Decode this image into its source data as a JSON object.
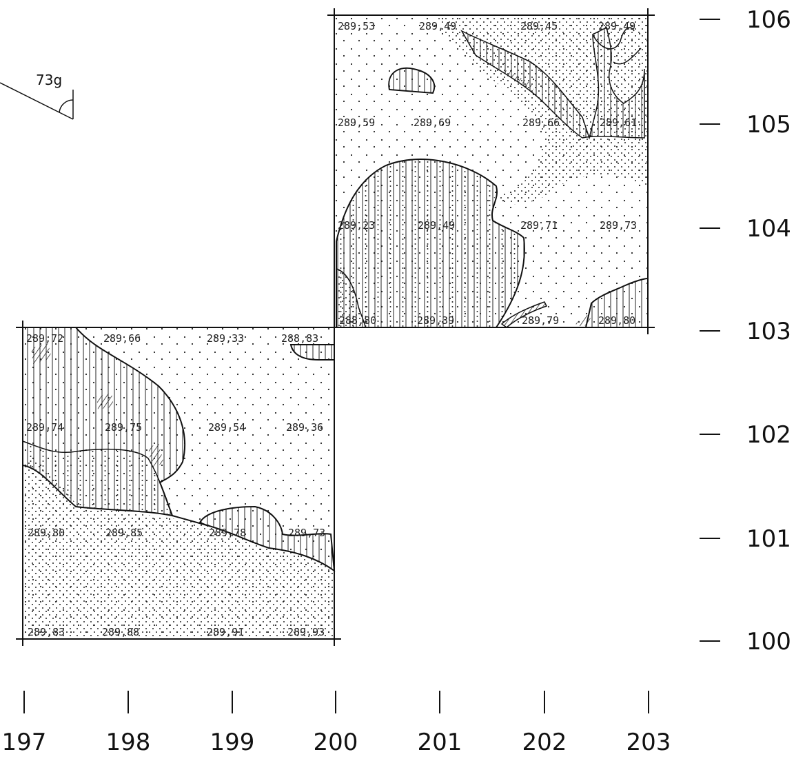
{
  "bearing": {
    "label": "73g"
  },
  "axes": {
    "x_labels": [
      "197",
      "198",
      "199",
      "200",
      "201",
      "202",
      "203"
    ],
    "y_labels": [
      "106",
      "105",
      "104",
      "103",
      "102",
      "101",
      "100"
    ]
  },
  "squares": [
    {
      "id": "upper-square",
      "elevations": [
        "289,53",
        "289,49",
        "289,45",
        "289,49",
        "289,59",
        "289,69",
        "289,66",
        "289,61",
        "289,23",
        "289,49",
        "289,71",
        "289,73",
        "288,80",
        "289,39",
        "289,79",
        "289,80"
      ]
    },
    {
      "id": "lower-square",
      "elevations": [
        "289,72",
        "289,66",
        "289,33",
        "288,83",
        "289,74",
        "289,75",
        "289,54",
        "289,36",
        "289,80",
        "289,85",
        "289,78",
        "289,73",
        "289,83",
        "289,88",
        "289,91",
        "289,93"
      ]
    }
  ],
  "legend_patterns": {
    "dots": "sparse-dot-stipple",
    "dense_dots": "dense-dot-stipple",
    "vertical": "vertical-hatching",
    "cross": "diagonal-hatching"
  }
}
